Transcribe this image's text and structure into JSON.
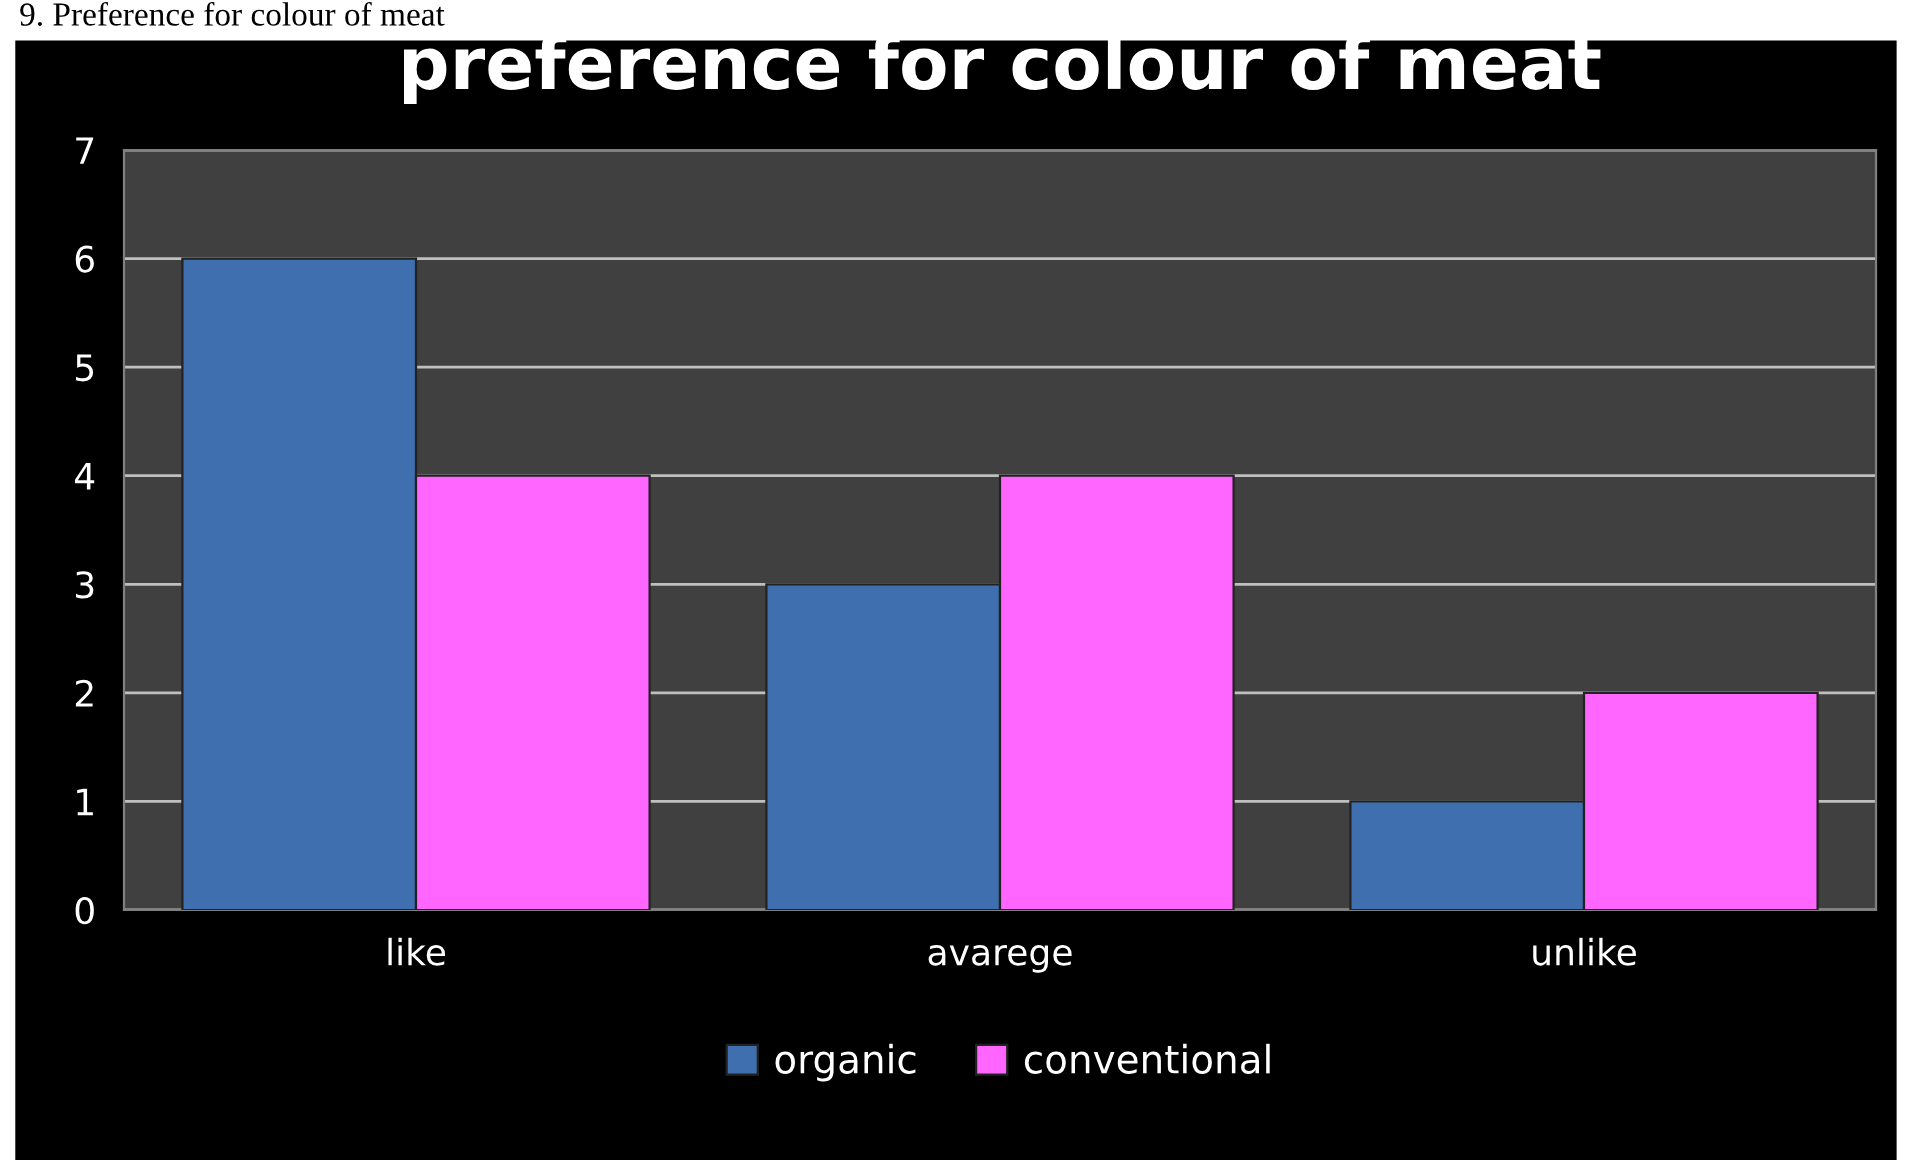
{
  "chart_data": {
    "type": "bar",
    "title": "preference for colour of meat",
    "annotations": [
      "9. Preference for colour of meat"
    ],
    "categories": [
      "like",
      "avarege",
      "unlike"
    ],
    "series": [
      {
        "name": "organic",
        "color": "#3f6fae",
        "values": [
          6,
          3,
          1
        ]
      },
      {
        "name": "conventional",
        "color": "#ff66ff",
        "values": [
          4,
          4,
          2
        ]
      }
    ],
    "ylim": [
      0,
      7
    ],
    "yticks": [
      0,
      1,
      2,
      3,
      4,
      5,
      6,
      7
    ],
    "grid": "y",
    "legend": "bottom"
  }
}
